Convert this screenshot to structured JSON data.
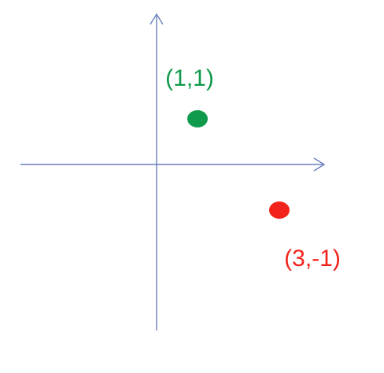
{
  "chart_data": {
    "type": "scatter",
    "title": "",
    "xlabel": "",
    "ylabel": "",
    "grid": false,
    "axes_color": "#6a7fbf",
    "points": [
      {
        "x": 1,
        "y": 1,
        "label": "(1,1)",
        "color": "#109a4c"
      },
      {
        "x": 3,
        "y": -1,
        "label": "(3,-1)",
        "color": "#f2231b"
      }
    ]
  }
}
